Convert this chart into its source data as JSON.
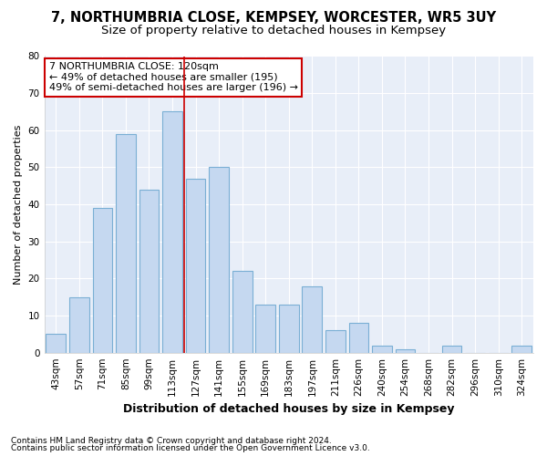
{
  "title1": "7, NORTHUMBRIA CLOSE, KEMPSEY, WORCESTER, WR5 3UY",
  "title2": "Size of property relative to detached houses in Kempsey",
  "xlabel": "Distribution of detached houses by size in Kempsey",
  "ylabel": "Number of detached properties",
  "footer1": "Contains HM Land Registry data © Crown copyright and database right 2024.",
  "footer2": "Contains public sector information licensed under the Open Government Licence v3.0.",
  "bar_labels": [
    "43sqm",
    "57sqm",
    "71sqm",
    "85sqm",
    "99sqm",
    "113sqm",
    "127sqm",
    "141sqm",
    "155sqm",
    "169sqm",
    "183sqm",
    "197sqm",
    "211sqm",
    "226sqm",
    "240sqm",
    "254sqm",
    "268sqm",
    "282sqm",
    "296sqm",
    "310sqm",
    "324sqm"
  ],
  "bar_values": [
    5,
    15,
    39,
    59,
    44,
    65,
    47,
    50,
    22,
    13,
    13,
    18,
    6,
    8,
    2,
    1,
    0,
    2,
    0,
    0,
    2
  ],
  "bar_color": "#c5d8f0",
  "bar_edge_color": "#7aafd4",
  "vline_color": "#cc0000",
  "vline_x_index": 5.5,
  "ylim": [
    0,
    80
  ],
  "yticks": [
    0,
    10,
    20,
    30,
    40,
    50,
    60,
    70,
    80
  ],
  "bg_color": "#ffffff",
  "plot_bg_color": "#e8eef8",
  "grid_color": "#ffffff",
  "annotation_box_color": "#ffffff",
  "annotation_border_color": "#cc0000",
  "property_label": "7 NORTHUMBRIA CLOSE: 120sqm",
  "annotation_line1": "← 49% of detached houses are smaller (195)",
  "annotation_line2": "49% of semi-detached houses are larger (196) →",
  "title1_fontsize": 10.5,
  "title2_fontsize": 9.5,
  "xlabel_fontsize": 9,
  "ylabel_fontsize": 8,
  "tick_fontsize": 7.5,
  "annotation_fontsize": 8,
  "footer_fontsize": 6.5
}
